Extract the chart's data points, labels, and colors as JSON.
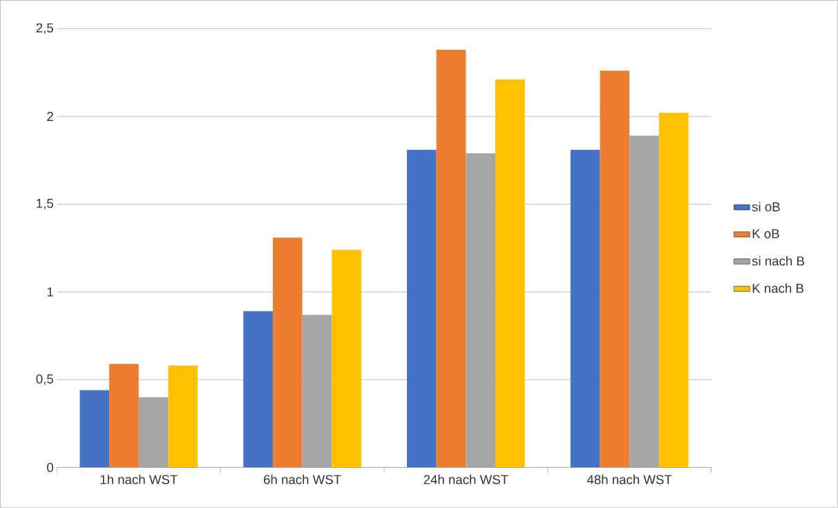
{
  "chart_data": {
    "type": "bar",
    "categories": [
      "1h nach WST",
      "6h nach WST",
      "24h nach WST",
      "48h nach WST"
    ],
    "series": [
      {
        "name": "si oB",
        "color": "#4472c4",
        "values": [
          0.44,
          0.89,
          1.81,
          1.81
        ]
      },
      {
        "name": "K oB",
        "color": "#ed7d31",
        "values": [
          0.59,
          1.31,
          2.38,
          2.26
        ]
      },
      {
        "name": "si nach B",
        "color": "#a5a5a5",
        "values": [
          0.4,
          0.87,
          1.79,
          1.89
        ]
      },
      {
        "name": "K nach B",
        "color": "#ffc000",
        "values": [
          0.58,
          1.24,
          2.21,
          2.02
        ]
      }
    ],
    "ylim": [
      0,
      2.5
    ],
    "yticks": [
      0,
      {
        "value": 0.5,
        "label": "0,5"
      },
      1,
      {
        "value": 1.5,
        "label": "1,5"
      },
      2,
      {
        "value": 2.5,
        "label": "2,5"
      }
    ],
    "grid": "y",
    "legend": "right"
  }
}
